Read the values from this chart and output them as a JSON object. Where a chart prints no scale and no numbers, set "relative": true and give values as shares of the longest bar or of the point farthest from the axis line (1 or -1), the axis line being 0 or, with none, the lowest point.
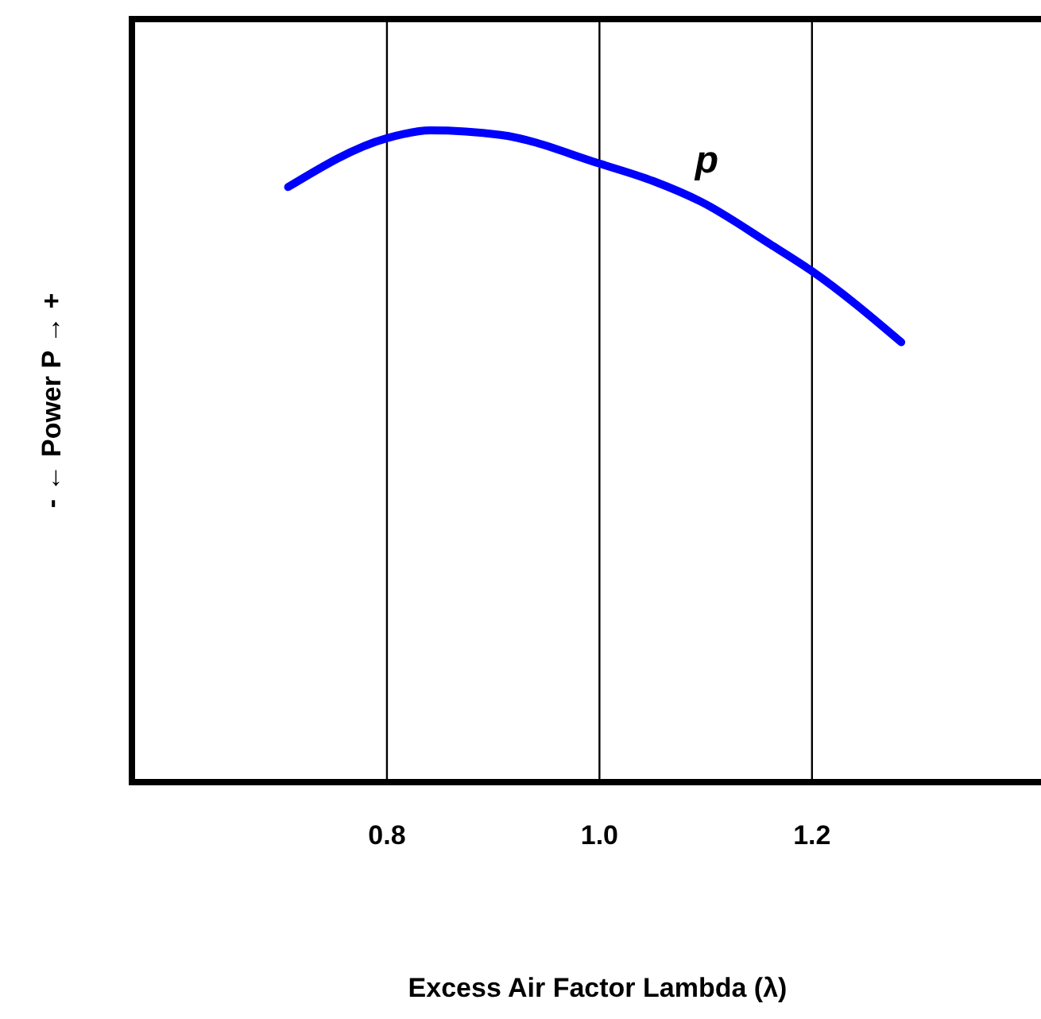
{
  "chart_data": {
    "type": "line",
    "xlabel": "Excess Air Factor Lambda (λ)",
    "ylabel": "- ← Power P → +",
    "relative": true,
    "series": [
      {
        "name": "p",
        "color": "#0000ff",
        "x": [
          0.707,
          0.8,
          0.841,
          0.907,
          1.0,
          1.051,
          1.095,
          1.161,
          1.2,
          1.284
        ],
        "values": [
          0.913,
          0.988,
          1,
          0.993,
          0.949,
          0.922,
          0.891,
          0.825,
          0.784,
          0.675
        ]
      }
    ],
    "xlim": [
      0.56,
      1.42
    ],
    "xticks": [
      0.8,
      {
        "value": 1,
        "label": "1.0"
      },
      1.2
    ],
    "grid": "x",
    "tick_labels": "x",
    "marker": "none",
    "line_style": "solid"
  }
}
